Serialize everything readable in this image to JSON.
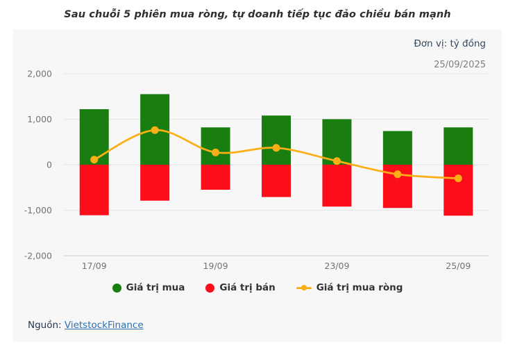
{
  "title": "Sau chuỗi 5 phiên mua ròng, tự doanh tiếp tục đảo chiều bán mạnh",
  "panel": {
    "unit_label": "Đơn vị: tỷ đồng",
    "date_label": "25/09/2025"
  },
  "footer": {
    "source_label": "Nguồn:",
    "source_link_text": "VietstockFinance"
  },
  "colors": {
    "buy": "#1a7d10",
    "sell": "#fc0d1a",
    "net": "#fbaf17",
    "panel_bg": "#f7f7f7",
    "grid": "#e5e5e5",
    "axis_line": "#c9d0dc",
    "tick_text": "#737373"
  },
  "chart_data": {
    "type": "bar",
    "subtype": "bar-with-line-overlay",
    "categories": [
      "17/09",
      "18/09",
      "19/09",
      "22/09",
      "23/09",
      "24/09",
      "25/09"
    ],
    "x_tick_labels": [
      "17/09",
      "",
      "19/09",
      "",
      "23/09",
      "",
      "25/09"
    ],
    "series": [
      {
        "name": "Giá trị mua",
        "type": "bar",
        "color": "#1a7d10",
        "values": [
          1220,
          1550,
          820,
          1080,
          1000,
          740,
          820
        ]
      },
      {
        "name": "Giá trị bán",
        "type": "bar",
        "color": "#fc0d1a",
        "values": [
          -1110,
          -790,
          -550,
          -710,
          -920,
          -950,
          -1120
        ]
      },
      {
        "name": "Giá trị mua ròng",
        "type": "line",
        "color": "#fbaf17",
        "values": [
          110,
          760,
          270,
          370,
          80,
          -210,
          -300
        ]
      }
    ],
    "title": "Sau chuỗi 5 phiên mua ròng, tự doanh tiếp tục đảo chiều bán mạnh",
    "xlabel": "",
    "ylabel": "",
    "ylim": [
      -2000,
      2000
    ],
    "y_ticks": [
      2000,
      1000,
      0,
      -1000,
      -2000
    ],
    "y_tick_labels": [
      "2,000",
      "1,000",
      "0",
      "-1,000",
      "-2,000"
    ],
    "grid": true,
    "legend_position": "bottom"
  }
}
